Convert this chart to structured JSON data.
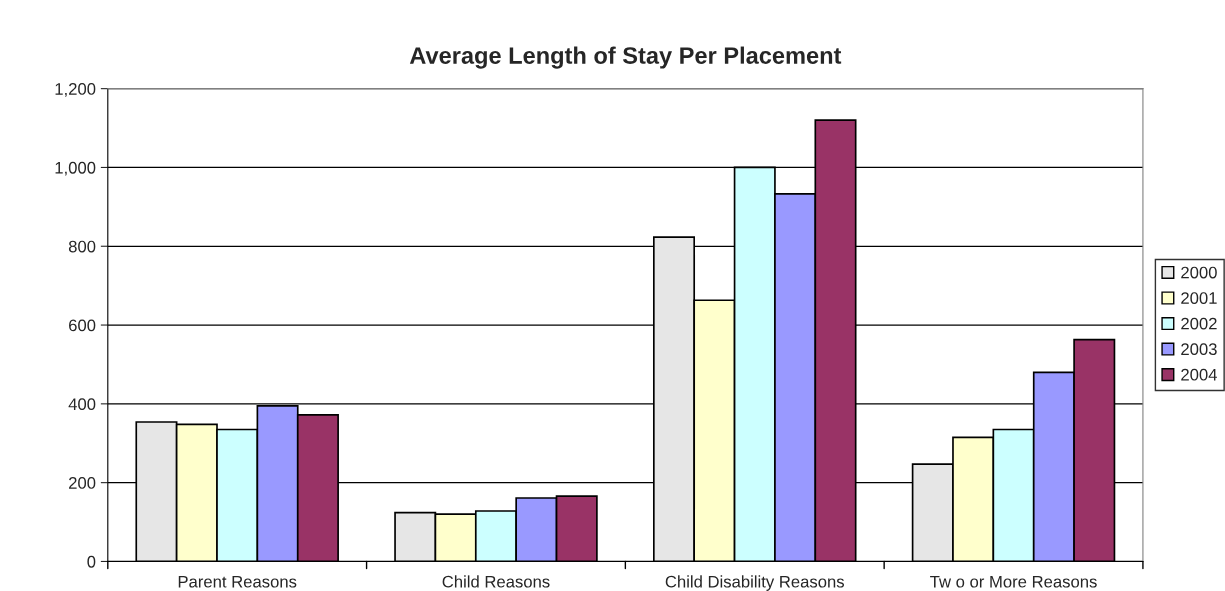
{
  "chart_data": {
    "type": "bar",
    "title": "Average Length of Stay Per Placement",
    "categories": [
      "Parent Reasons",
      "Child Reasons",
      "Child Disability Reasons",
      "Tw o or More Reasons"
    ],
    "series": [
      {
        "name": "2000",
        "color": "#e6e6e6",
        "values": [
          354,
          124,
          823,
          247
        ]
      },
      {
        "name": "2001",
        "color": "#ffffcc",
        "values": [
          348,
          120,
          663,
          315
        ]
      },
      {
        "name": "2002",
        "color": "#ccffff",
        "values": [
          335,
          128,
          1000,
          335
        ]
      },
      {
        "name": "2003",
        "color": "#9999ff",
        "values": [
          395,
          161,
          933,
          480
        ]
      },
      {
        "name": "2004",
        "color": "#993366",
        "values": [
          372,
          166,
          1120,
          563
        ]
      }
    ],
    "ylim": [
      0,
      1200
    ],
    "yticks": [
      0,
      200,
      400,
      600,
      800,
      {
        "value": 1000,
        "label": "1,000"
      },
      {
        "value": 1200,
        "label": "1,200"
      }
    ],
    "grid": "y",
    "legend": "right"
  }
}
